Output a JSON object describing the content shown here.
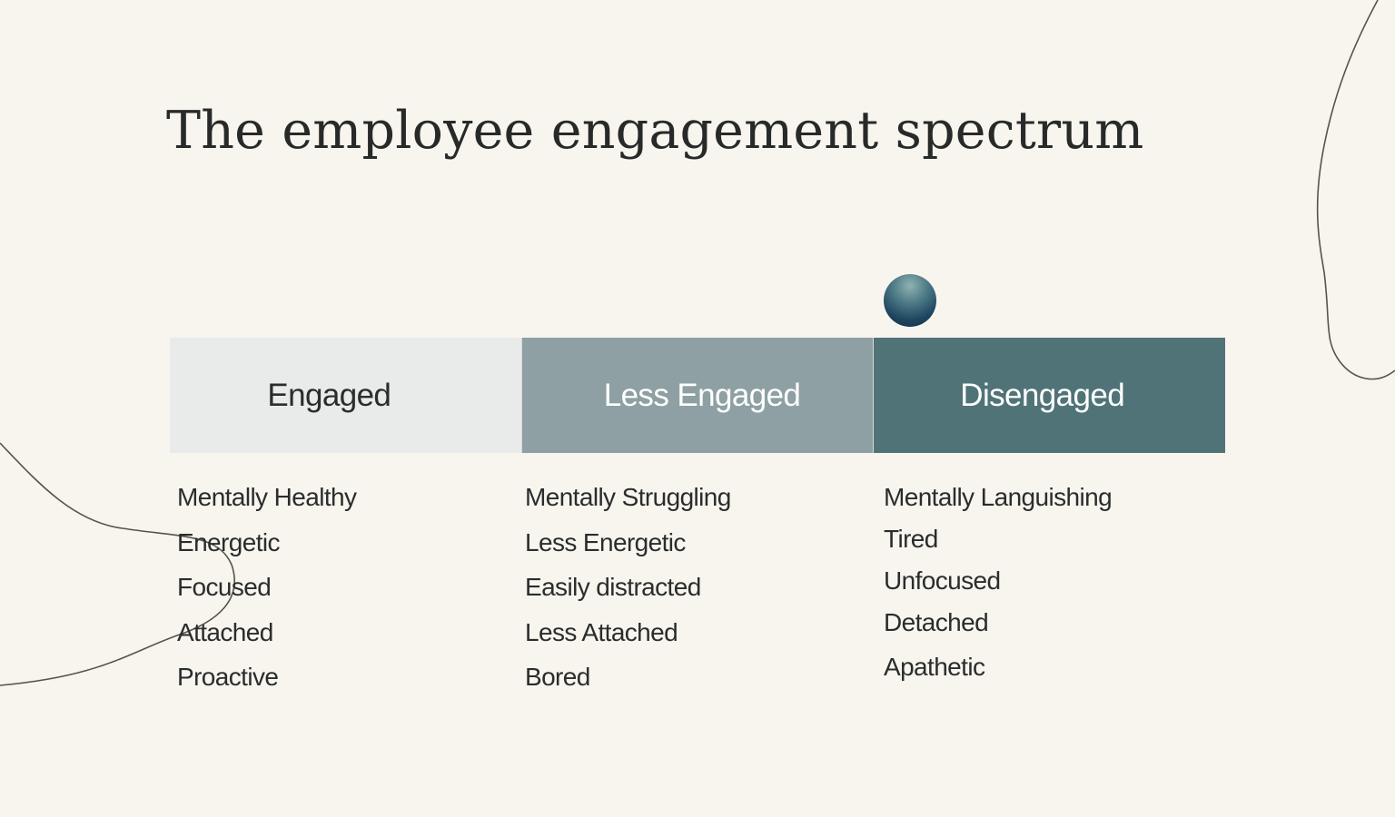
{
  "title": "The employee engagement spectrum",
  "spectrum": {
    "segments": [
      {
        "label": "Engaged",
        "color": "#e9eaea",
        "text_color": "#2a2d2c"
      },
      {
        "label": "Less Engaged",
        "color": "#8ea0a3",
        "text_color": "#ffffff"
      },
      {
        "label": "Disengaged",
        "color": "#507378",
        "text_color": "#ffffff"
      }
    ],
    "marker_segment": "Disengaged",
    "marker_color": "#1f4660"
  },
  "columns": [
    {
      "items": [
        "Mentally Healthy",
        "Energetic",
        "Focused",
        "Attached",
        "Proactive"
      ]
    },
    {
      "items": [
        "Mentally Struggling",
        "Less Energetic",
        "Easily distracted",
        "Less Attached",
        "Bored"
      ]
    },
    {
      "items": [
        "Mentally Languishing",
        "Tired",
        "Unfocused",
        "Detached",
        "Apathetic"
      ]
    }
  ],
  "colors": {
    "background": "#f8f5ef",
    "text": "#2a2d2c",
    "decor_line": "#55544c"
  }
}
